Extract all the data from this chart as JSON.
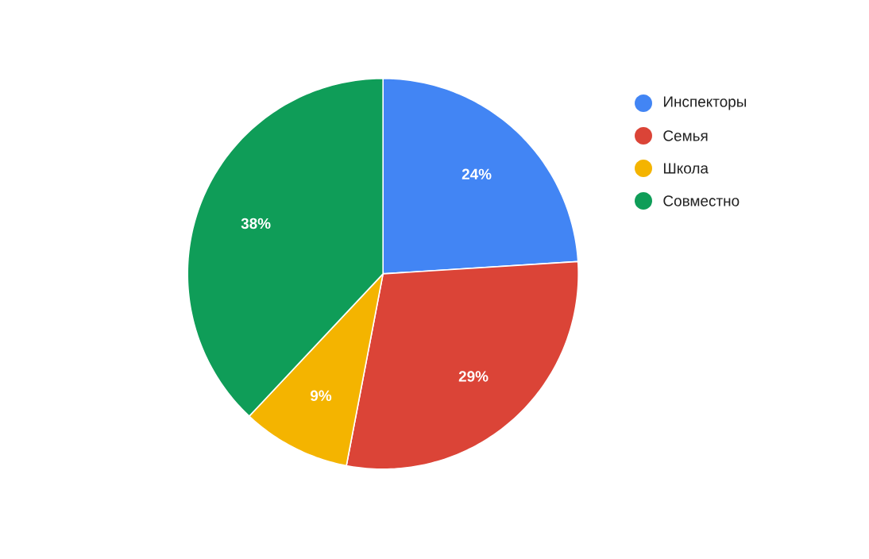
{
  "chart_data": {
    "type": "pie",
    "categories": [
      "Инспекторы",
      "Семья",
      "Школа",
      "Совместно"
    ],
    "values": [
      24,
      29,
      9,
      38
    ],
    "colors": [
      "#4285f4",
      "#db4437",
      "#f4b400",
      "#0f9d58"
    ],
    "value_labels": [
      "24%",
      "29%",
      "9%",
      "38%"
    ],
    "legend": "top right"
  }
}
